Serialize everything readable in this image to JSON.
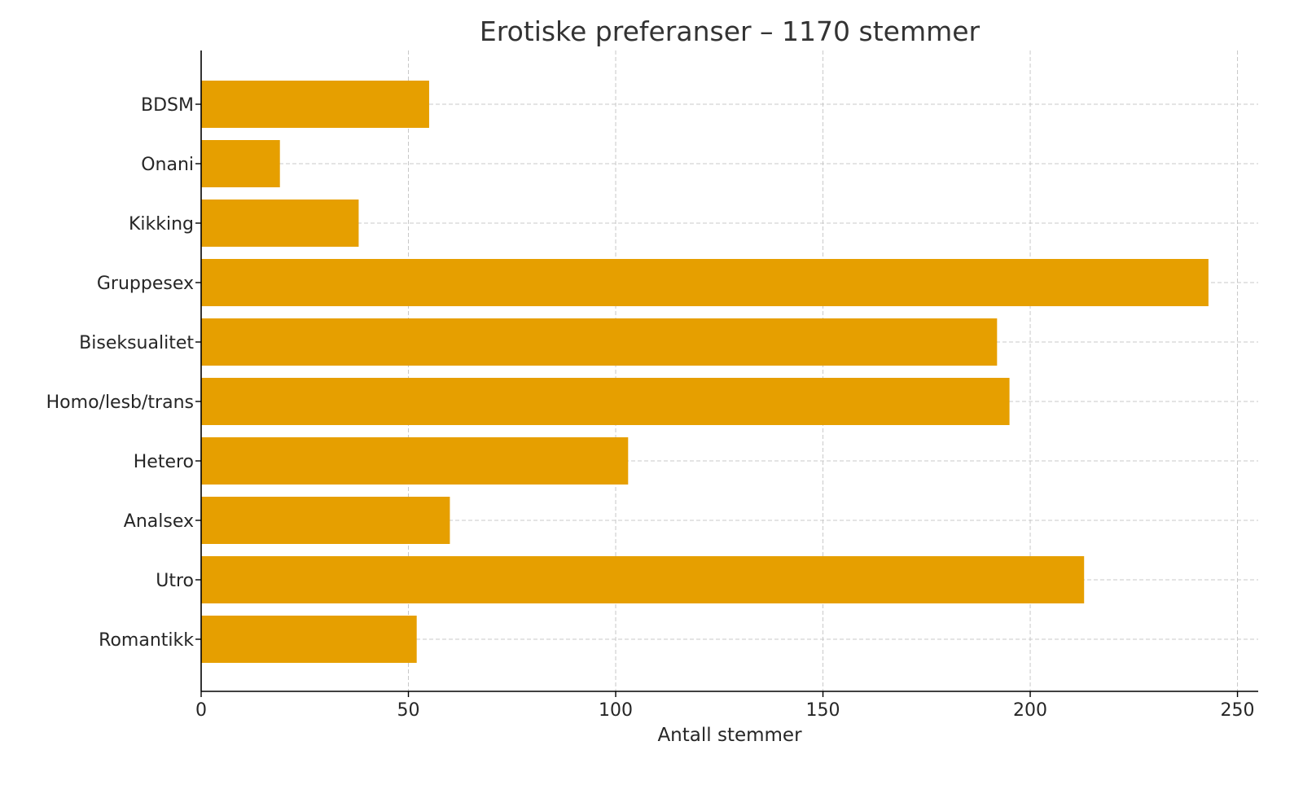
{
  "chart_data": {
    "type": "bar",
    "orientation": "horizontal",
    "title": "Erotiske preferanser – 1170 stemmer",
    "xlabel": "Antall stemmer",
    "ylabel": "",
    "categories": [
      "BDSM",
      "Onani",
      "Kikking",
      "Gruppesex",
      "Biseksualitet",
      "Homo/lesb/trans",
      "Hetero",
      "Analsex",
      "Utro",
      "Romantikk"
    ],
    "values": [
      55,
      19,
      38,
      243,
      192,
      195,
      103,
      60,
      213,
      52
    ],
    "xlim": [
      0,
      255
    ],
    "xticks": [
      0,
      50,
      100,
      150,
      200,
      250
    ],
    "grid": true,
    "bar_color": "#E69F00"
  }
}
